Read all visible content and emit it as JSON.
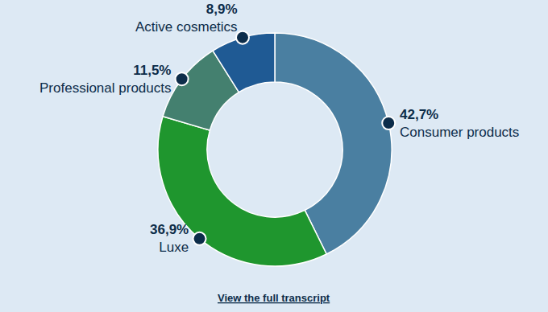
{
  "chart_data": {
    "type": "pie",
    "categories": [
      "Consumer products",
      "Luxe",
      "Professional products",
      "Active cosmetics"
    ],
    "values": [
      42.7,
      36.9,
      11.5,
      8.9
    ],
    "value_labels": [
      "42,7%",
      "36,9%",
      "11,5%",
      "8,9%"
    ],
    "colors": [
      "#4a7fa1",
      "#1f962e",
      "#44806f",
      "#1f5a94"
    ],
    "data_labels": true,
    "annotations": [
      "View the full transcript"
    ]
  }
}
